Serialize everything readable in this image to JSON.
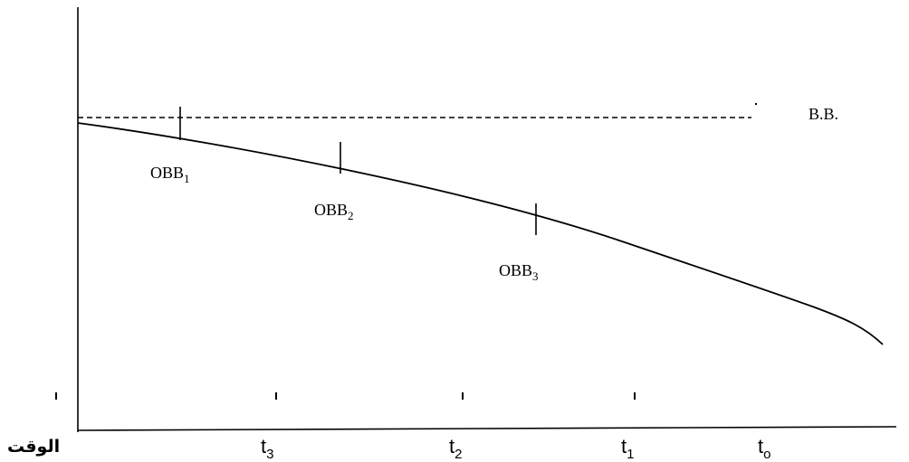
{
  "diagram": {
    "reference_label": "B.B.",
    "axis_label": "الوقت",
    "markers": [
      {
        "base": "OBB",
        "sub": "1"
      },
      {
        "base": "OBB",
        "sub": "2"
      },
      {
        "base": "OBB",
        "sub": "3"
      }
    ],
    "time_labels": [
      {
        "base": "t",
        "sub": "3"
      },
      {
        "base": "t",
        "sub": "2"
      },
      {
        "base": "t",
        "sub": "1"
      },
      {
        "base": "t",
        "sub": "o"
      }
    ]
  }
}
